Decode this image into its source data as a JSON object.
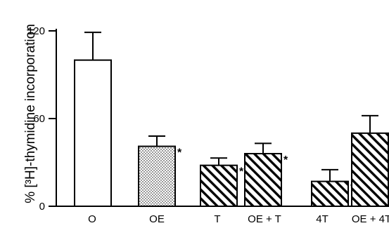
{
  "chart_data": {
    "type": "bar",
    "ylabel": "% [³H]-thymidine incorporation",
    "ylim": [
      0,
      120
    ],
    "yticks": [
      "0",
      "60",
      "120"
    ],
    "categories": [
      "O",
      "OE",
      "T",
      "OE + T",
      "4T",
      "OE + 4T"
    ],
    "values": [
      100,
      41,
      28,
      36,
      17,
      50
    ],
    "errors": [
      19,
      7,
      5,
      7,
      8,
      12
    ],
    "significance": [
      "",
      "*",
      "*",
      "*",
      "**",
      "*"
    ],
    "fills": [
      "open",
      "dotted",
      "hatched",
      "hatched",
      "hatched",
      "hatched"
    ],
    "grid": false,
    "legend": "none"
  }
}
